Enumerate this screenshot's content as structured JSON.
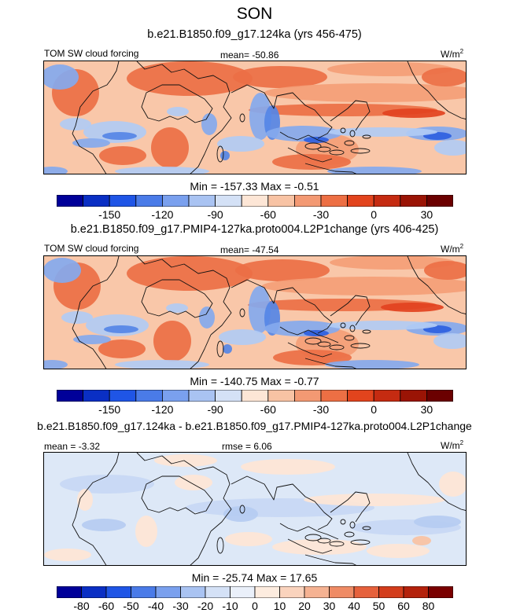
{
  "main_title": "SON",
  "units_label": "W/m",
  "units_exp": "2",
  "colors": {
    "positive": [
      "#fde9dc",
      "#f9c7a9",
      "#f49e77",
      "#ec6f45",
      "#e2421f",
      "#c92912",
      "#8b0a00"
    ],
    "negative": [
      "#d6e4f9",
      "#b1cbf4",
      "#84a9ee",
      "#5586e6",
      "#2e5fe0",
      "#1a3fc7",
      "#0d1f98",
      "#000066"
    ],
    "neutral": "#fff5ee",
    "cbar_top": [
      "#000099",
      "#0a2fc4",
      "#1f55e6",
      "#4a7be8",
      "#7aa0ee",
      "#a9c3f2",
      "#d4e1f6",
      "#fde6d6",
      "#f8c3a4",
      "#f39973",
      "#ed6f44",
      "#e2441d",
      "#c52b11",
      "#9a1405",
      "#6b0000"
    ],
    "cbar_diff": [
      "#000099",
      "#0a2fc4",
      "#1f55e6",
      "#4a7be8",
      "#7aa0ee",
      "#a9c3f2",
      "#d4e1f6",
      "#eaf0fa",
      "#fdecdf",
      "#fad3bd",
      "#f5b292",
      "#ef8b65",
      "#e6613c",
      "#d33d1c",
      "#b4220c",
      "#7a0000"
    ]
  },
  "chart_data": [
    {
      "type": "heatmap",
      "case_title": "b.e21.B1850.f09_g17.124ka (yrs 456-475)",
      "variable": "TOM SW cloud forcing",
      "mean_text": "mean= -50.86",
      "min_max_text": "Min = -157.33 Max =  -0.51",
      "colorbar_ticks": [
        "-150",
        "-120",
        "-90",
        "-60",
        "-30",
        "0",
        "30"
      ],
      "colorbar_levels": [
        -165,
        -150,
        -135,
        -120,
        -105,
        -90,
        -75,
        -60,
        -45,
        -30,
        -15,
        0,
        15,
        30,
        45,
        60
      ]
    },
    {
      "type": "heatmap",
      "case_title": "b.e21.B1850.f09_g17.PMIP4-127ka.proto004.L2P1change (yrs 406-425)",
      "variable": "TOM SW cloud forcing",
      "mean_text": "mean= -47.54",
      "min_max_text": "Min = -140.75 Max =  -0.77",
      "colorbar_ticks": [
        "-150",
        "-120",
        "-90",
        "-60",
        "-30",
        "0",
        "30"
      ],
      "colorbar_levels": [
        -165,
        -150,
        -135,
        -120,
        -105,
        -90,
        -75,
        -60,
        -45,
        -30,
        -15,
        0,
        15,
        30,
        45,
        60
      ]
    },
    {
      "type": "heatmap",
      "case_title": "b.e21.B1850.f09_g17.124ka - b.e21.B1850.f09_g17.PMIP4-127ka.proto004.L2P1change",
      "mean_text": "mean =  -3.32",
      "rmse_text": "rmse =  6.06",
      "min_max_text": "Min = -25.74 Max =  17.65",
      "colorbar_ticks": [
        "-80",
        "-60",
        "-50",
        "-40",
        "-30",
        "-20",
        "-10",
        "0",
        "10",
        "20",
        "30",
        "40",
        "50",
        "60",
        "80"
      ]
    }
  ]
}
